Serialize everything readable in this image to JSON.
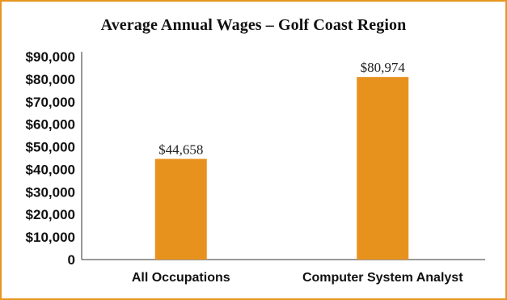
{
  "chart_data": {
    "type": "bar",
    "title": "Average Annual Wages – Golf Coast Region",
    "categories": [
      "All Occupations",
      "Computer System Analyst"
    ],
    "values": [
      44658,
      80974
    ],
    "data_labels": [
      "$44,658",
      "$80,974"
    ],
    "ylim": [
      0,
      90000
    ],
    "yticks": [
      0,
      10000,
      20000,
      30000,
      40000,
      50000,
      60000,
      70000,
      80000,
      90000
    ],
    "ytick_labels": [
      "0",
      "$10,000",
      "$20,000",
      "$30,000",
      "$40,000",
      "$50,000",
      "$60,000",
      "$70,000",
      "$80,000",
      "$90,000"
    ],
    "xlabel": "",
    "ylabel": "",
    "grid": false,
    "legend": "none",
    "bar_color": "#e8921e",
    "frame_color": "#e8961e"
  }
}
